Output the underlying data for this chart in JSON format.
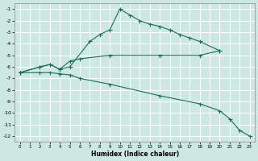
{
  "xlabel": "Humidex (Indice chaleur)",
  "bg_color": "#cce8e0",
  "grid_color": "#ffffff",
  "line_color": "#1a6b5e",
  "xlim": [
    -0.5,
    23.5
  ],
  "ylim": [
    -12.5,
    -0.5
  ],
  "yticks": [
    -1,
    -2,
    -3,
    -4,
    -5,
    -6,
    -7,
    -8,
    -9,
    -10,
    -11,
    -12
  ],
  "xticks": [
    0,
    1,
    2,
    3,
    4,
    5,
    6,
    7,
    8,
    9,
    10,
    11,
    12,
    13,
    14,
    15,
    16,
    17,
    18,
    19,
    20,
    21,
    22,
    23
  ],
  "line1_x": [
    0,
    2,
    3,
    4,
    5,
    7,
    8,
    9,
    10,
    11,
    12,
    13,
    14,
    15,
    16,
    17,
    18,
    20
  ],
  "line1_y": [
    -6.5,
    -6.0,
    -5.8,
    -6.2,
    -6.0,
    -3.8,
    -3.2,
    -2.8,
    -1.0,
    -1.5,
    -2.0,
    -2.3,
    -2.5,
    -2.8,
    -3.2,
    -3.5,
    -3.8,
    -4.6
  ],
  "line2_x": [
    0,
    2,
    3,
    4,
    5,
    6,
    9,
    14,
    18,
    20
  ],
  "line2_y": [
    -6.5,
    -6.0,
    -5.8,
    -6.2,
    -5.5,
    -5.3,
    -5.0,
    -5.0,
    -5.0,
    -4.6
  ],
  "line3_x": [
    0,
    2,
    3,
    4,
    5,
    6,
    9,
    14,
    18,
    20,
    21,
    22,
    23
  ],
  "line3_y": [
    -6.5,
    -6.5,
    -6.5,
    -6.6,
    -6.7,
    -7.0,
    -7.5,
    -8.5,
    -9.2,
    -9.8,
    -10.5,
    -11.5,
    -12.0
  ]
}
